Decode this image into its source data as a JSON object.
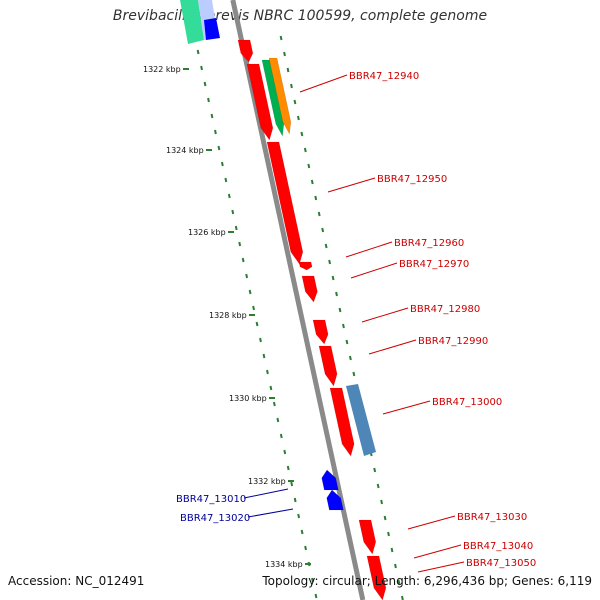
{
  "title": "Brevibacillus brevis NBRC 100599, complete genome",
  "footer": {
    "accession": "Accession: NC_012491",
    "summary": "Topology: circular; Length: 6,296,436 bp; Genes: 6,119"
  },
  "colors": {
    "backbone": "#8a8a8a",
    "forward_gene": "#ff0000",
    "reverse_gene": "#0000ff",
    "rna_track_a": "#00b050",
    "rna_track_b": "#ff8c00",
    "feature_blue": "#4f86b8",
    "scale_dot": "#2e7d32",
    "forward_label": "#cc0000",
    "reverse_label": "#000099"
  },
  "scale_labels": [
    {
      "key": "k1322",
      "text": "1322 kbp"
    },
    {
      "key": "k1324",
      "text": "1324 kbp"
    },
    {
      "key": "k1326",
      "text": "1326 kbp"
    },
    {
      "key": "k1328",
      "text": "1328 kbp"
    },
    {
      "key": "k1330",
      "text": "1330 kbp"
    },
    {
      "key": "k1332",
      "text": "1332 kbp"
    },
    {
      "key": "k1334",
      "text": "1334 kbp"
    }
  ],
  "gene_labels_forward": [
    {
      "key": "g12940",
      "text": "BBR47_12940"
    },
    {
      "key": "g12950",
      "text": "BBR47_12950"
    },
    {
      "key": "g12960",
      "text": "BBR47_12960"
    },
    {
      "key": "g12970",
      "text": "BBR47_12970"
    },
    {
      "key": "g12980",
      "text": "BBR47_12980"
    },
    {
      "key": "g12990",
      "text": "BBR47_12990"
    },
    {
      "key": "g13000",
      "text": "BBR47_13000"
    },
    {
      "key": "g13030",
      "text": "BBR47_13030"
    },
    {
      "key": "g13040",
      "text": "BBR47_13040"
    },
    {
      "key": "g13050",
      "text": "BBR47_13050"
    }
  ],
  "gene_labels_reverse": [
    {
      "key": "g13010",
      "text": "BBR47_13010"
    },
    {
      "key": "g13020",
      "text": "BBR47_13020"
    }
  ]
}
